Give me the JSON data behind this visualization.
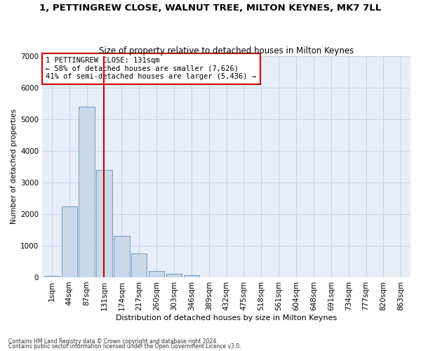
{
  "title": "1, PETTINGREW CLOSE, WALNUT TREE, MILTON KEYNES, MK7 7LL",
  "subtitle": "Size of property relative to detached houses in Milton Keynes",
  "xlabel": "Distribution of detached houses by size in Milton Keynes",
  "ylabel": "Number of detached properties",
  "footnote1": "Contains HM Land Registry data © Crown copyright and database right 2024.",
  "footnote2": "Contains public sector information licensed under the Open Government Licence v3.0.",
  "bar_labels": [
    "1sqm",
    "44sqm",
    "87sqm",
    "131sqm",
    "174sqm",
    "217sqm",
    "260sqm",
    "303sqm",
    "346sqm",
    "389sqm",
    "432sqm",
    "475sqm",
    "518sqm",
    "561sqm",
    "604sqm",
    "648sqm",
    "691sqm",
    "734sqm",
    "777sqm",
    "820sqm",
    "863sqm"
  ],
  "bar_values": [
    50,
    2250,
    5400,
    3400,
    1300,
    750,
    200,
    120,
    60,
    0,
    0,
    0,
    0,
    0,
    0,
    0,
    0,
    0,
    0,
    0,
    0
  ],
  "bar_color": "#c9d9ea",
  "bar_edge_color": "#6090b8",
  "vline_x": 3,
  "vline_color": "#cc0000",
  "annotation_line1": "1 PETTINGREW CLOSE: 131sqm",
  "annotation_line2": "← 58% of detached houses are smaller (7,626)",
  "annotation_line3": "41% of semi-detached houses are larger (5,436) →",
  "annotation_box_color": "white",
  "annotation_box_edge": "#cc0000",
  "ylim": [
    0,
    7000
  ],
  "yticks": [
    0,
    1000,
    2000,
    3000,
    4000,
    5000,
    6000,
    7000
  ],
  "grid_color": "#c8d4e4",
  "background_color": "#e8eef8",
  "title_fontsize": 9.5,
  "subtitle_fontsize": 8.5,
  "axis_fontsize": 7.5,
  "tick_fontsize": 7.5
}
